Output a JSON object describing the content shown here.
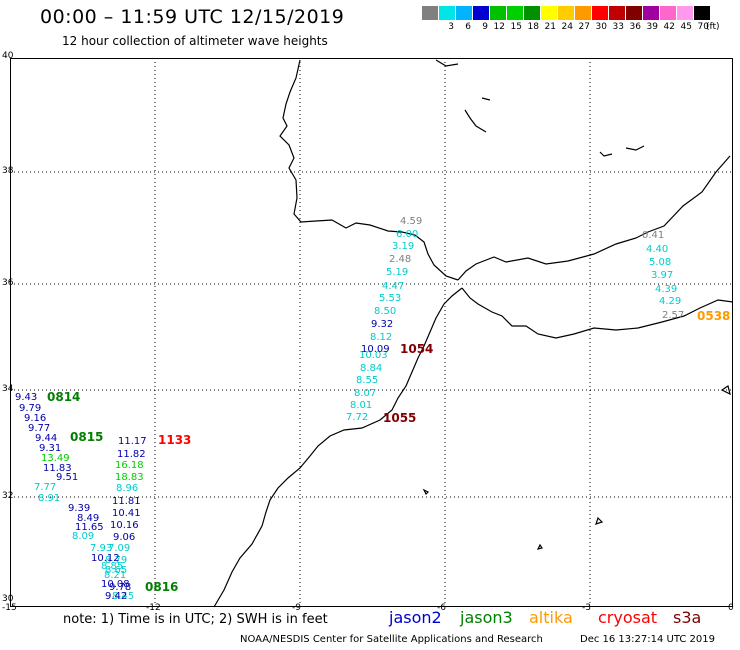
{
  "header": {
    "title": "00:00 – 11:59 UTC 12/15/2019",
    "subtitle": "12 hour collection of altimeter wave heights"
  },
  "color_scale": {
    "colors": [
      "#808080",
      "#00e5e5",
      "#00b4ff",
      "#0000d0",
      "#00c000",
      "#00d000",
      "#009000",
      "#ffff00",
      "#ffcc00",
      "#ff9900",
      "#ff0000",
      "#c00000",
      "#800000",
      "#a000a0",
      "#ff66cc",
      "#ff99ee",
      "#000000"
    ],
    "labels": [
      "",
      "3",
      "6",
      "9",
      "12",
      "15",
      "18",
      "21",
      "24",
      "27",
      "30",
      "33",
      "36",
      "39",
      "42",
      "45",
      "70"
    ],
    "unit": "(ft)"
  },
  "axes": {
    "lat_labels": [
      "40",
      "38",
      "36",
      "34",
      "32",
      "30"
    ],
    "lon_labels": [
      "-15",
      "-12",
      "-9",
      "-6",
      "-3",
      "0"
    ]
  },
  "track_times": [
    {
      "text": "0814",
      "color": "#008000"
    },
    {
      "text": "0815",
      "color": "#008000"
    },
    {
      "text": "0816",
      "color": "#008000"
    },
    {
      "text": "1133",
      "color": "#ff0000"
    },
    {
      "text": "1054",
      "color": "#800000"
    },
    {
      "text": "1055",
      "color": "#800000"
    },
    {
      "text": "0538",
      "color": "#ff9900"
    }
  ],
  "wave_groups": [
    {
      "color": "#00cccc",
      "values": [
        "6.00",
        "3.19",
        "5.19",
        "4.47",
        "5.53",
        "8.50",
        "8.12",
        "8.84",
        "8.55",
        "8.07",
        "8.01",
        "7.72",
        "4.40",
        "5.08",
        "3.97",
        "4.39",
        "4.29",
        "8.96",
        "7.77",
        "8.91",
        "8.09",
        "7.93",
        "7.09",
        "8.79",
        "8.85",
        "8.65",
        "8.21",
        "8.45",
        "10.03"
      ]
    },
    {
      "color": "#808080",
      "values": [
        "4.59",
        "2.48",
        "0.41",
        "2.57"
      ]
    },
    {
      "color": "#0000aa",
      "values": [
        "9.32",
        "10.09",
        "9.43",
        "9.79",
        "9.16",
        "9.77",
        "9.44",
        "9.31",
        "11.17",
        "11.82",
        "11.83",
        "9.51",
        "11.81",
        "9.39",
        "10.41",
        "8.49",
        "10.16",
        "11.65",
        "9.06",
        "10.12",
        "10.08",
        "9.78",
        "9.42"
      ]
    },
    {
      "color": "#00cc00",
      "values": [
        "13.49",
        "16.18",
        "18.83"
      ]
    }
  ],
  "footer": {
    "note": "note:  1) Time is in UTC;  2) SWH is in feet",
    "legend": [
      {
        "text": "jason2",
        "color": "#0000cc"
      },
      {
        "text": "jason3",
        "color": "#008000"
      },
      {
        "text": "altika",
        "color": "#ff9900"
      },
      {
        "text": "cryosat",
        "color": "#ff0000"
      },
      {
        "text": "s3a",
        "color": "#800000"
      }
    ],
    "credit": "NOAA/NESDIS Center for Satellite Applications and Research",
    "timestamp": "Dec 16 13:27:14 UTC 2019"
  }
}
